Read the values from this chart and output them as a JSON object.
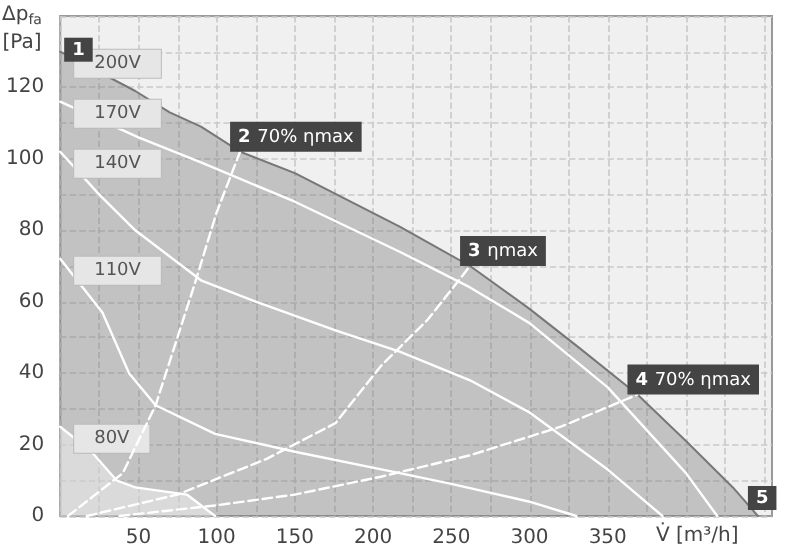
{
  "chart_data": {
    "type": "line",
    "xlabel": "V̇ [m³/h]",
    "ylabel": "Δp$_{fa}$ [Pa]",
    "xlim": [
      0,
      455
    ],
    "ylim": [
      0,
      140
    ],
    "xticks": [
      {
        "value": 0,
        "label": null
      },
      {
        "value": 25,
        "label": null
      },
      50,
      {
        "value": 75,
        "label": null
      },
      100,
      {
        "value": 125,
        "label": null
      },
      150,
      {
        "value": 175,
        "label": null
      },
      200,
      {
        "value": 225,
        "label": null
      },
      250,
      {
        "value": 275,
        "label": null
      },
      300,
      {
        "value": 325,
        "label": null
      },
      350,
      {
        "value": 375,
        "label": null
      },
      {
        "value": 400,
        "label": null
      },
      {
        "value": 425,
        "label": null
      },
      {
        "value": 450,
        "label": null
      }
    ],
    "yticks": [
      0,
      {
        "value": 10,
        "label": null
      },
      20,
      {
        "value": 30,
        "label": null
      },
      40,
      {
        "value": 50,
        "label": null
      },
      60,
      {
        "value": 70,
        "label": null
      },
      80,
      {
        "value": 90,
        "label": null
      },
      100,
      {
        "value": 110,
        "label": null
      },
      120,
      {
        "value": 130,
        "label": null
      },
      {
        "value": 140,
        "label": null
      }
    ],
    "grid": true,
    "legend": false,
    "marker": "none",
    "series": [
      {
        "name": "200V",
        "type": "area",
        "color": "#777777",
        "x": [
          0,
          48,
          70,
          90,
          115,
          150,
          217,
          262,
          300,
          332,
          369,
          400,
          430,
          446
        ],
        "values": [
          130,
          119,
          113,
          109,
          102,
          96,
          81,
          70,
          58,
          47,
          34,
          21,
          8,
          0
        ]
      },
      {
        "name": "80V",
        "type": "area",
        "color": "#ffffff",
        "x": [
          0,
          20,
          36,
          48,
          81,
          99
        ],
        "values": [
          25,
          18,
          10,
          8,
          6,
          0
        ]
      },
      {
        "name": "170V",
        "color": "#ffffff",
        "line_style": "solid",
        "x": [
          0,
          50,
          90,
          150,
          217,
          262,
          300,
          350,
          400,
          420
        ],
        "values": [
          116,
          106,
          99,
          88,
          74,
          64,
          54,
          36,
          12,
          0
        ]
      },
      {
        "name": "140V",
        "color": "#ffffff",
        "line_style": "solid",
        "x": [
          0,
          25,
          48,
          90,
          125,
          176,
          217,
          262,
          300,
          350,
          385
        ],
        "values": [
          102,
          90,
          80,
          66,
          60,
          52,
          46,
          38,
          29,
          13,
          0
        ]
      },
      {
        "name": "110V",
        "color": "#ffffff",
        "line_style": "solid",
        "x": [
          0,
          27,
          44,
          61,
          99,
          150,
          217,
          250,
          300,
          330
        ],
        "values": [
          72,
          57,
          40,
          31,
          23,
          18,
          12,
          9,
          4,
          0
        ]
      },
      {
        "color": "#ffffff",
        "line_style": "dashed",
        "x": [
          5,
          40,
          61,
          86,
          100,
          115
        ],
        "values": [
          0,
          12,
          31,
          65,
          85,
          102
        ]
      },
      {
        "color": "#ffffff",
        "line_style": "dashed",
        "x": [
          17,
          75,
          132,
          176,
          205,
          235,
          262
        ],
        "values": [
          0,
          6,
          16,
          26,
          42,
          55,
          70
        ]
      },
      {
        "color": "#ffffff",
        "line_style": "dashed",
        "x": [
          38,
          100,
          150,
          205,
          262,
          320,
          369
        ],
        "values": [
          0,
          3,
          6,
          11,
          17,
          25,
          34
        ]
      }
    ],
    "annotations": [
      {
        "text": "1",
        "x": 0,
        "y": 130
      },
      {
        "text": "2 70% ηmax",
        "x": 115,
        "y": 102
      },
      {
        "text": "3 ηmax",
        "x": 262,
        "y": 70
      },
      {
        "text": "4 70% ηmax",
        "x": 369,
        "y": 34
      },
      {
        "text": "5",
        "x": 446,
        "y": 0
      }
    ]
  }
}
